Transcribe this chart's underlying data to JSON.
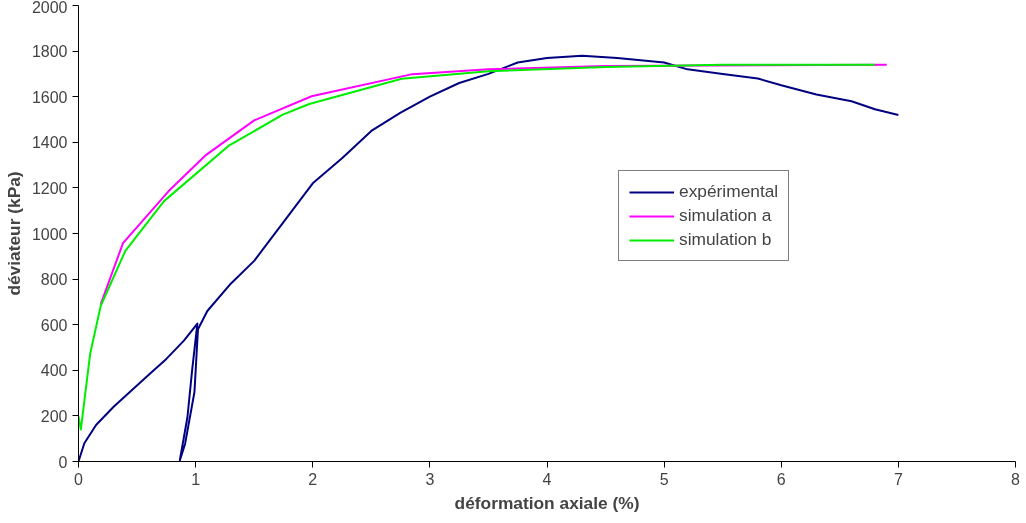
{
  "chart_data": {
    "type": "line",
    "xlabel": "déformation axiale (%)",
    "ylabel": "déviateur (kPa)",
    "xlim": [
      0,
      8
    ],
    "ylim": [
      0,
      2000
    ],
    "xticks": [
      0,
      1,
      2,
      3,
      4,
      5,
      6,
      7,
      8
    ],
    "yticks": [
      0,
      200,
      400,
      600,
      800,
      1000,
      1200,
      1400,
      1600,
      1800,
      2000
    ],
    "grid": false,
    "legend": "right",
    "marker": "none",
    "line_style": "solid",
    "series": [
      {
        "name": "expérimental",
        "color": "#000080",
        "x": [
          0,
          0.05,
          0.15,
          0.3,
          0.45,
          0.6,
          0.75,
          0.9,
          1.015,
          0.97,
          0.93,
          0.865,
          0.91,
          0.99,
          1.02,
          1.1,
          1.3,
          1.5,
          1.75,
          2,
          2.25,
          2.5,
          2.75,
          3,
          3.25,
          3.5,
          3.75,
          4,
          4.3,
          4.6,
          5,
          5.2,
          5.5,
          5.8,
          6,
          6.3,
          6.6,
          6.8,
          7
        ],
        "values": [
          0,
          80,
          160,
          240,
          310,
          380,
          450,
          530,
          605,
          400,
          194,
          5,
          77,
          305,
          580,
          660,
          780,
          880,
          1050,
          1220,
          1330,
          1450,
          1530,
          1600,
          1660,
          1700,
          1750,
          1770,
          1780,
          1770,
          1750,
          1720,
          1700,
          1680,
          1650,
          1610,
          1580,
          1545,
          1520
        ]
      },
      {
        "name": "simulation a",
        "color": "#ff00ff",
        "x": [
          0.19,
          0.38,
          0.77,
          1.09,
          1.5,
          1.99,
          2.85,
          3.5,
          4.5,
          6.9
        ],
        "values": [
          690,
          958,
          1186,
          1345,
          1496,
          1602,
          1699,
          1720,
          1735,
          1740
        ]
      },
      {
        "name": "simulation b",
        "color": "#00ee00",
        "x": [
          0,
          0.02,
          0.1,
          0.19,
          0.4,
          0.73,
          1.28,
          1.74,
          1.97,
          2.76,
          3.5,
          4.5,
          5.5,
          6.8
        ],
        "values": [
          198,
          140,
          474,
          683,
          924,
          1142,
          1384,
          1520,
          1568,
          1679,
          1712,
          1730,
          1740,
          1740
        ]
      }
    ]
  }
}
